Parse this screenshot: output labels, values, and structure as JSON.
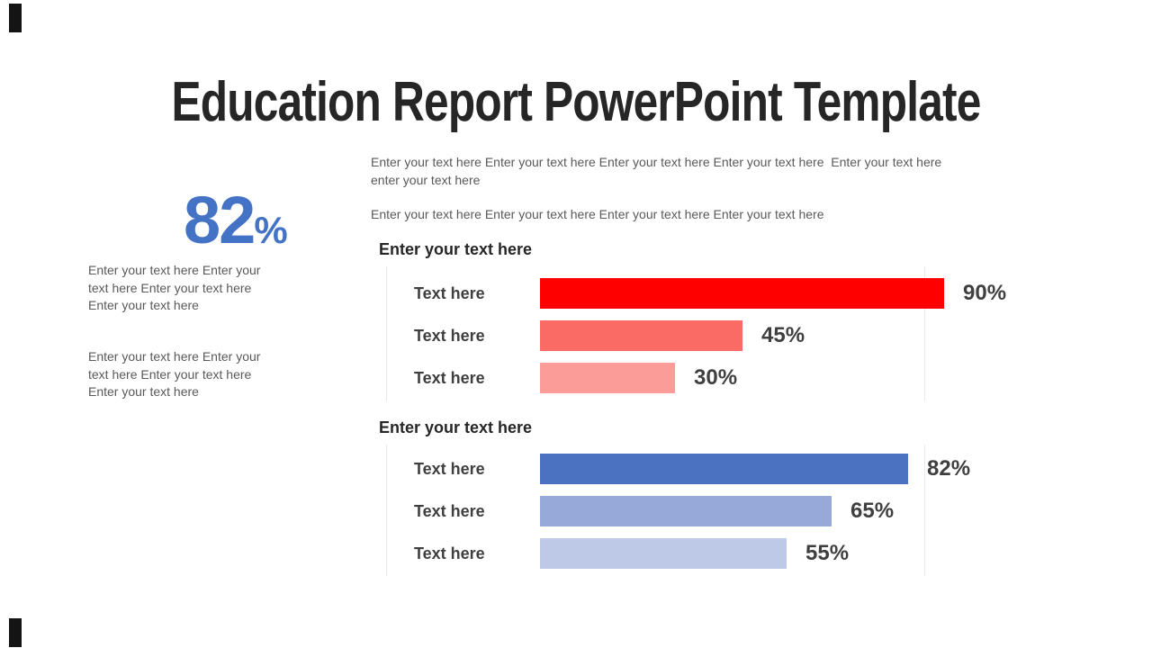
{
  "slide": {
    "title": "Education Report PowerPoint Template"
  },
  "stat": {
    "value": "82",
    "unit": "%",
    "color": "#4472C4"
  },
  "left_column": {
    "paragraph1_lines": [
      "Enter your text here Enter your",
      "text here Enter your text here",
      "Enter your text here"
    ],
    "paragraph2_lines": [
      "Enter your text here Enter your",
      "text here Enter your text here",
      "Enter your text here"
    ]
  },
  "intro": {
    "paragraph1_lines": [
      "Enter your text here Enter your text here Enter your text here Enter your text here  Enter your text here",
      "enter your text here"
    ],
    "paragraph2": "Enter your text here Enter your text here Enter your text here Enter your text here"
  },
  "chart_data": [
    {
      "type": "bar",
      "orientation": "horizontal",
      "title": "Enter your text here",
      "categories": [
        "Text here",
        "Text here",
        "Text here"
      ],
      "values": [
        90,
        45,
        30
      ],
      "value_labels": [
        "90%",
        "45%",
        "30%"
      ],
      "bar_colors": [
        "#FE0000",
        "#FA6B65",
        "#FB9C99"
      ],
      "xlim": [
        0,
        100
      ],
      "grid": false,
      "legend": "none"
    },
    {
      "type": "bar",
      "orientation": "horizontal",
      "title": "Enter your text here",
      "categories": [
        "Text here",
        "Text here",
        "Text here"
      ],
      "values": [
        82,
        65,
        55
      ],
      "value_labels": [
        "82%",
        "65%",
        "55%"
      ],
      "bar_colors": [
        "#4B72C1",
        "#97A9D9",
        "#BDC9E7"
      ],
      "xlim": [
        0,
        100
      ],
      "grid": false,
      "legend": "none"
    }
  ],
  "colors": {
    "title_text": "#262626",
    "body_text": "#595959",
    "label_text": "#3F3F3F",
    "accent_blue": "#4472C4",
    "plot_border": "#EAEAEA"
  }
}
